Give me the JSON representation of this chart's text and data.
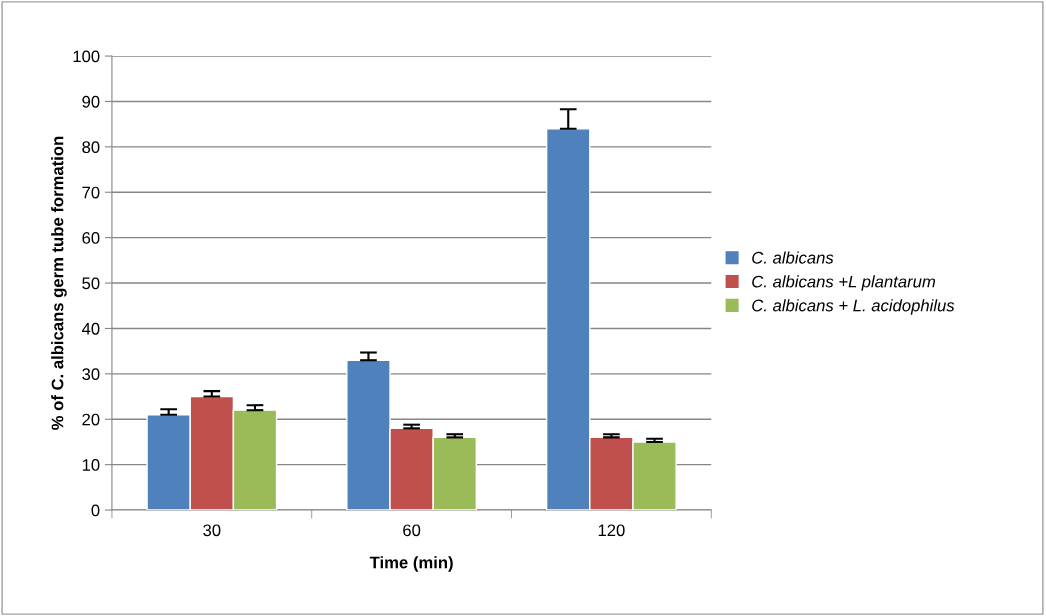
{
  "chart_data": {
    "type": "bar",
    "ylabel": "% of C. albicans germ tube formation",
    "xlabel": "Time (min)",
    "categories": [
      "30",
      "60",
      "120"
    ],
    "series": [
      {
        "name": "C. albicans",
        "color": "#4f81bd",
        "values": [
          21,
          33,
          84
        ],
        "errors": [
          [
            21,
            22.2
          ],
          [
            33,
            34.7
          ],
          [
            84,
            88.3
          ]
        ]
      },
      {
        "name": "C. albicans +L plantarum",
        "color": "#c0504d",
        "values": [
          25,
          18,
          16
        ],
        "errors": [
          [
            25,
            26.2
          ],
          [
            18,
            18.8
          ],
          [
            16,
            16.7
          ]
        ]
      },
      {
        "name": "C. albicans + L. acidophilus",
        "color": "#9bbb59",
        "values": [
          22,
          16,
          15
        ],
        "errors": [
          [
            22,
            23.1
          ],
          [
            16,
            16.7
          ],
          [
            15,
            15.7
          ]
        ]
      }
    ],
    "ylim": [
      0,
      100
    ],
    "yticks": [
      0,
      10,
      20,
      30,
      40,
      50,
      60,
      70,
      80,
      90,
      100
    ],
    "grid": "y",
    "legend": "right"
  }
}
